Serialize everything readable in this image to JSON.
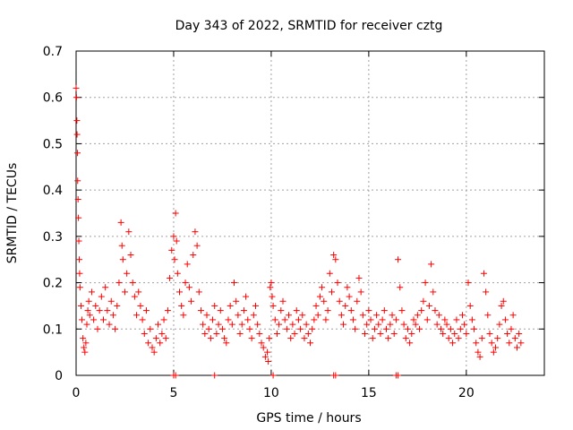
{
  "chart_data": {
    "type": "scatter",
    "title": "Day 343 of 2022, SRMTID for receiver cztg",
    "xlabel": "GPS time / hours",
    "ylabel": "SRMTID / TECUs",
    "xlim": [
      0,
      24.0
    ],
    "ylim": [
      0,
      0.7
    ],
    "xticks": [
      0,
      5,
      10,
      15,
      20
    ],
    "yticks": [
      0,
      0.1,
      0.2,
      0.3,
      0.4,
      0.5,
      0.6,
      0.7
    ],
    "xtick_labels": [
      "0",
      "5",
      "10",
      "15",
      "20"
    ],
    "ytick_labels": [
      "0",
      "0.1",
      "0.2",
      "0.3",
      "0.4",
      "0.5",
      "0.6",
      "0.7"
    ],
    "grid": true,
    "marker": "+",
    "color": "#ff0000",
    "series": [
      {
        "name": "SRMTID",
        "x": [
          0.0,
          0.02,
          0.04,
          0.05,
          0.07,
          0.08,
          0.1,
          0.12,
          0.14,
          0.16,
          0.18,
          0.2,
          0.25,
          0.3,
          0.35,
          0.4,
          0.45,
          0.5,
          0.55,
          0.6,
          0.65,
          0.7,
          0.8,
          0.9,
          1.0,
          1.1,
          1.2,
          1.3,
          1.4,
          1.5,
          1.6,
          1.7,
          1.8,
          1.9,
          2.0,
          2.1,
          2.2,
          2.3,
          2.35,
          2.4,
          2.5,
          2.6,
          2.7,
          2.8,
          2.9,
          3.0,
          3.1,
          3.2,
          3.3,
          3.4,
          3.5,
          3.6,
          3.7,
          3.8,
          3.9,
          4.0,
          4.1,
          4.2,
          4.3,
          4.4,
          4.5,
          4.6,
          4.7,
          4.8,
          4.9,
          5.0,
          5.05,
          5.1,
          5.15,
          5.2,
          5.3,
          5.4,
          5.5,
          5.6,
          5.7,
          5.8,
          5.9,
          6.0,
          6.1,
          6.2,
          6.3,
          6.4,
          6.5,
          6.6,
          6.7,
          6.8,
          6.9,
          7.0,
          7.1,
          7.2,
          7.3,
          7.4,
          7.5,
          7.6,
          7.7,
          7.8,
          7.9,
          8.0,
          8.1,
          8.2,
          8.3,
          8.4,
          8.5,
          8.6,
          8.7,
          8.8,
          8.9,
          9.0,
          9.1,
          9.2,
          9.3,
          9.4,
          9.5,
          9.6,
          9.7,
          9.8,
          9.85,
          9.9,
          9.95,
          10.0,
          10.05,
          10.1,
          10.2,
          10.3,
          10.4,
          10.5,
          10.6,
          10.7,
          10.8,
          10.9,
          11.0,
          11.1,
          11.2,
          11.3,
          11.4,
          11.5,
          11.6,
          11.7,
          11.8,
          11.9,
          12.0,
          12.1,
          12.2,
          12.3,
          12.4,
          12.5,
          12.6,
          12.7,
          12.8,
          12.9,
          13.0,
          13.1,
          13.2,
          13.3,
          13.4,
          13.5,
          13.6,
          13.7,
          13.8,
          13.9,
          14.0,
          14.1,
          14.2,
          14.3,
          14.4,
          14.5,
          14.6,
          14.7,
          14.8,
          14.9,
          15.0,
          15.1,
          15.2,
          15.3,
          15.4,
          15.5,
          15.6,
          15.7,
          15.8,
          15.9,
          16.0,
          16.1,
          16.2,
          16.3,
          16.4,
          16.5,
          16.6,
          16.7,
          16.8,
          16.9,
          17.0,
          17.1,
          17.2,
          17.3,
          17.4,
          17.5,
          17.6,
          17.7,
          17.8,
          17.9,
          18.0,
          18.1,
          18.2,
          18.3,
          18.4,
          18.5,
          18.6,
          18.7,
          18.8,
          18.9,
          19.0,
          19.1,
          19.2,
          19.3,
          19.4,
          19.5,
          19.6,
          19.7,
          19.8,
          19.9,
          20.0,
          20.1,
          20.2,
          20.3,
          20.4,
          20.5,
          20.6,
          20.7,
          20.8,
          20.9,
          21.0,
          21.1,
          21.2,
          21.3,
          21.4,
          21.5,
          21.6,
          21.7,
          21.8,
          21.9,
          22.0,
          22.1,
          22.2,
          22.3,
          22.4,
          22.5,
          22.6,
          22.7,
          22.8,
          5.0,
          5.1,
          7.1,
          10.1,
          13.2,
          13.3,
          16.4,
          16.5
        ],
        "y": [
          0.62,
          0.6,
          0.55,
          0.52,
          0.48,
          0.42,
          0.38,
          0.34,
          0.29,
          0.25,
          0.22,
          0.19,
          0.15,
          0.12,
          0.08,
          0.06,
          0.05,
          0.07,
          0.11,
          0.14,
          0.16,
          0.13,
          0.18,
          0.12,
          0.15,
          0.1,
          0.14,
          0.17,
          0.12,
          0.19,
          0.14,
          0.11,
          0.16,
          0.13,
          0.1,
          0.15,
          0.2,
          0.33,
          0.28,
          0.25,
          0.18,
          0.22,
          0.31,
          0.26,
          0.2,
          0.17,
          0.13,
          0.18,
          0.15,
          0.12,
          0.09,
          0.14,
          0.07,
          0.1,
          0.06,
          0.05,
          0.08,
          0.11,
          0.07,
          0.09,
          0.12,
          0.08,
          0.14,
          0.21,
          0.27,
          0.3,
          0.25,
          0.35,
          0.29,
          0.22,
          0.18,
          0.15,
          0.13,
          0.2,
          0.24,
          0.19,
          0.16,
          0.26,
          0.31,
          0.28,
          0.18,
          0.14,
          0.11,
          0.09,
          0.13,
          0.1,
          0.08,
          0.12,
          0.15,
          0.09,
          0.11,
          0.14,
          0.1,
          0.08,
          0.07,
          0.12,
          0.15,
          0.11,
          0.2,
          0.16,
          0.13,
          0.09,
          0.11,
          0.14,
          0.17,
          0.12,
          0.1,
          0.08,
          0.13,
          0.15,
          0.11,
          0.09,
          0.07,
          0.06,
          0.04,
          0.05,
          0.03,
          0.08,
          0.19,
          0.2,
          0.17,
          0.15,
          0.12,
          0.09,
          0.11,
          0.14,
          0.16,
          0.12,
          0.1,
          0.13,
          0.08,
          0.11,
          0.09,
          0.14,
          0.12,
          0.1,
          0.13,
          0.08,
          0.11,
          0.09,
          0.07,
          0.1,
          0.12,
          0.15,
          0.13,
          0.17,
          0.19,
          0.16,
          0.12,
          0.14,
          0.22,
          0.18,
          0.26,
          0.25,
          0.2,
          0.16,
          0.13,
          0.11,
          0.15,
          0.19,
          0.17,
          0.14,
          0.12,
          0.1,
          0.16,
          0.21,
          0.18,
          0.13,
          0.09,
          0.11,
          0.14,
          0.12,
          0.08,
          0.1,
          0.13,
          0.11,
          0.09,
          0.12,
          0.14,
          0.1,
          0.08,
          0.11,
          0.13,
          0.09,
          0.12,
          0.25,
          0.19,
          0.14,
          0.11,
          0.08,
          0.1,
          0.07,
          0.09,
          0.12,
          0.11,
          0.13,
          0.1,
          0.14,
          0.16,
          0.2,
          0.12,
          0.15,
          0.24,
          0.18,
          0.14,
          0.11,
          0.13,
          0.1,
          0.09,
          0.12,
          0.11,
          0.08,
          0.1,
          0.07,
          0.09,
          0.12,
          0.08,
          0.1,
          0.13,
          0.11,
          0.09,
          0.2,
          0.15,
          0.12,
          0.1,
          0.07,
          0.05,
          0.04,
          0.08,
          0.22,
          0.18,
          0.13,
          0.09,
          0.07,
          0.05,
          0.06,
          0.08,
          0.11,
          0.15,
          0.16,
          0.12,
          0.09,
          0.07,
          0.1,
          0.13,
          0.08,
          0.06,
          0.09,
          0.07,
          0.0,
          0.0,
          0.0,
          0.0,
          0.0,
          0.0,
          0.0,
          0.0
        ]
      }
    ]
  }
}
